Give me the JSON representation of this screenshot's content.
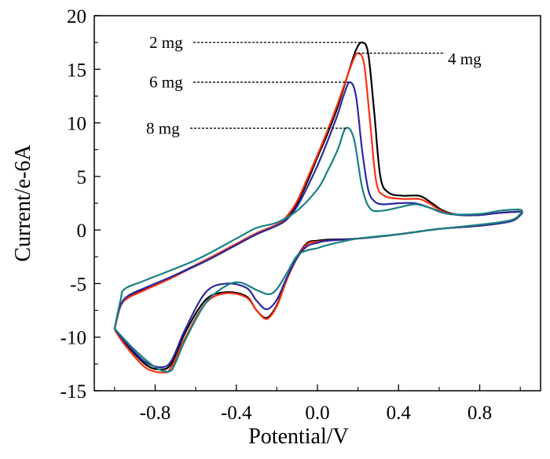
{
  "chart_data": {
    "type": "line",
    "title": "",
    "xlabel": "Potential/V",
    "ylabel": "Current/e-6A",
    "xlim": [
      -1.1,
      1.1
    ],
    "ylim": [
      -15,
      20
    ],
    "xticks": [
      -0.8,
      -0.4,
      0.0,
      0.4,
      0.8
    ],
    "xtick_labels": [
      "-0.8",
      "-0.4",
      "0.0",
      "0.4",
      "0.8"
    ],
    "yticks": [
      -15,
      -10,
      -5,
      0,
      5,
      10,
      15,
      20
    ],
    "ytick_labels": [
      "-15",
      "-10",
      "-5",
      "0",
      "5",
      "10",
      "15",
      "20"
    ],
    "grid": false,
    "series": [
      {
        "name": "2 mg",
        "color": "#000000",
        "x": [
          -1.0,
          -0.97,
          -0.93,
          -0.85,
          -0.7,
          -0.55,
          -0.4,
          -0.3,
          -0.2,
          -0.15,
          -0.1,
          -0.05,
          0,
          0.05,
          0.1,
          0.15,
          0.19,
          0.22,
          0.25,
          0.28,
          0.31,
          0.35,
          0.42,
          0.5,
          0.55,
          0.62,
          0.7,
          0.8,
          0.9,
          1.0,
          1.0,
          0.95,
          0.8,
          0.6,
          0.4,
          0.2,
          0.05,
          0,
          -0.05,
          -0.1,
          -0.15,
          -0.2,
          -0.25,
          -0.3,
          -0.35,
          -0.45,
          -0.55,
          -0.65,
          -0.72,
          -0.78,
          -0.85,
          -0.95,
          -1.0
        ],
        "y": [
          -9.2,
          -7,
          -6.2,
          -5.5,
          -4.2,
          -2.8,
          -1.3,
          -0.3,
          0.5,
          1.2,
          2.5,
          4.5,
          6.8,
          9,
          11.5,
          14.5,
          16.8,
          17.5,
          16.5,
          11,
          5,
          3.5,
          3.2,
          3.2,
          2.7,
          1.8,
          1.4,
          1.4,
          1.6,
          1.7,
          1.4,
          0.8,
          0.4,
          0.1,
          -0.4,
          -0.8,
          -0.9,
          -1.0,
          -1.2,
          -2.5,
          -4.5,
          -7,
          -8.2,
          -7.5,
          -6.2,
          -5.8,
          -6.5,
          -9.5,
          -12.5,
          -13,
          -12.5,
          -10.5,
          -9.2
        ]
      },
      {
        "name": "4 mg",
        "color": "#ff3010",
        "x": [
          -1.0,
          -0.97,
          -0.93,
          -0.85,
          -0.7,
          -0.55,
          -0.4,
          -0.3,
          -0.2,
          -0.15,
          -0.1,
          -0.05,
          0,
          0.05,
          0.1,
          0.15,
          0.18,
          0.2,
          0.23,
          0.26,
          0.29,
          0.33,
          0.42,
          0.5,
          0.55,
          0.62,
          0.7,
          0.8,
          0.9,
          1.0,
          1.0,
          0.95,
          0.8,
          0.6,
          0.4,
          0.2,
          0.05,
          0,
          -0.05,
          -0.1,
          -0.15,
          -0.2,
          -0.25,
          -0.3,
          -0.35,
          -0.45,
          -0.55,
          -0.65,
          -0.72,
          -0.76,
          -0.85,
          -0.95,
          -1.0
        ],
        "y": [
          -9.3,
          -7.1,
          -6.3,
          -5.6,
          -4.3,
          -2.8,
          -1.3,
          -0.3,
          0.5,
          1.3,
          2.7,
          4.8,
          7,
          9.3,
          11.8,
          14.5,
          16,
          16.5,
          15.5,
          10,
          4.5,
          3.2,
          2.9,
          2.9,
          2.5,
          1.7,
          1.4,
          1.4,
          1.6,
          1.7,
          1.4,
          0.8,
          0.4,
          0.1,
          -0.4,
          -0.8,
          -1.0,
          -1.1,
          -1.3,
          -2.6,
          -4.6,
          -7.1,
          -8.3,
          -7.5,
          -6.3,
          -5.9,
          -6.8,
          -10,
          -12.8,
          -13.3,
          -12.8,
          -10.7,
          -9.3
        ]
      },
      {
        "name": "6 mg",
        "color": "#2a2aa0",
        "x": [
          -1.0,
          -0.97,
          -0.93,
          -0.85,
          -0.7,
          -0.55,
          -0.4,
          -0.3,
          -0.2,
          -0.15,
          -0.1,
          -0.05,
          0,
          0.05,
          0.1,
          0.13,
          0.16,
          0.19,
          0.22,
          0.25,
          0.28,
          0.32,
          0.4,
          0.48,
          0.55,
          0.62,
          0.7,
          0.8,
          0.9,
          1.0,
          1.0,
          0.95,
          0.8,
          0.6,
          0.4,
          0.2,
          0.05,
          0,
          -0.05,
          -0.1,
          -0.15,
          -0.2,
          -0.25,
          -0.3,
          -0.35,
          -0.45,
          -0.55,
          -0.65,
          -0.72,
          -0.77,
          -0.85,
          -0.95,
          -1.0
        ],
        "y": [
          -9.2,
          -7,
          -6.1,
          -5.4,
          -4.2,
          -2.9,
          -1.4,
          -0.4,
          0.4,
          1.0,
          2.2,
          4,
          6,
          8.3,
          10.8,
          12.6,
          13.8,
          12.5,
          7.5,
          3.8,
          2.7,
          2.4,
          2.5,
          2.5,
          2.1,
          1.6,
          1.4,
          1.4,
          1.6,
          1.7,
          1.4,
          0.8,
          0.4,
          0.1,
          -0.4,
          -0.8,
          -1.0,
          -1.2,
          -1.5,
          -2.6,
          -4.4,
          -6.5,
          -7.4,
          -6.6,
          -5.4,
          -5.0,
          -5.8,
          -9.2,
          -12.2,
          -12.8,
          -12.3,
          -10.4,
          -9.2
        ]
      },
      {
        "name": "8 mg",
        "color": "#1a8080",
        "x": [
          -1.0,
          -0.97,
          -0.95,
          -0.85,
          -0.6,
          -0.4,
          -0.3,
          -0.2,
          -0.1,
          0,
          0.05,
          0.1,
          0.14,
          0.18,
          0.22,
          0.26,
          0.32,
          0.4,
          0.48,
          0.55,
          0.65,
          0.8,
          0.9,
          1.0,
          1.0,
          0.95,
          0.8,
          0.6,
          0.4,
          0.2,
          0.05,
          0,
          -0.05,
          -0.1,
          -0.15,
          -0.2,
          -0.24,
          -0.3,
          -0.38,
          -0.45,
          -0.55,
          -0.65,
          -0.7,
          -0.73,
          -0.8,
          -0.9,
          -1.0
        ],
        "y": [
          -9.2,
          -6.5,
          -5.5,
          -4.7,
          -2.8,
          -0.8,
          0.2,
          0.7,
          1.8,
          3.8,
          5.5,
          7.5,
          9.5,
          8.5,
          4,
          2,
          1.8,
          2.1,
          2.4,
          2.1,
          1.5,
          1.5,
          1.8,
          1.9,
          1.5,
          0.9,
          0.5,
          0.1,
          -0.4,
          -0.8,
          -1.4,
          -1.7,
          -1.9,
          -2.4,
          -4,
          -5.5,
          -6.0,
          -5.6,
          -4.9,
          -5.2,
          -6.8,
          -10.2,
          -12.4,
          -13.2,
          -12.8,
          -11.2,
          -9.2
        ]
      }
    ],
    "annotations": [
      {
        "text": "2 mg",
        "series": "2 mg",
        "peak": [
          0.22,
          17.5
        ]
      },
      {
        "text": "4 mg",
        "series": "4 mg",
        "peak": [
          0.2,
          16.5
        ]
      },
      {
        "text": "6 mg",
        "series": "6 mg",
        "peak": [
          0.16,
          13.8
        ]
      },
      {
        "text": "8 mg",
        "series": "8 mg",
        "peak": [
          0.14,
          9.5
        ]
      }
    ]
  }
}
